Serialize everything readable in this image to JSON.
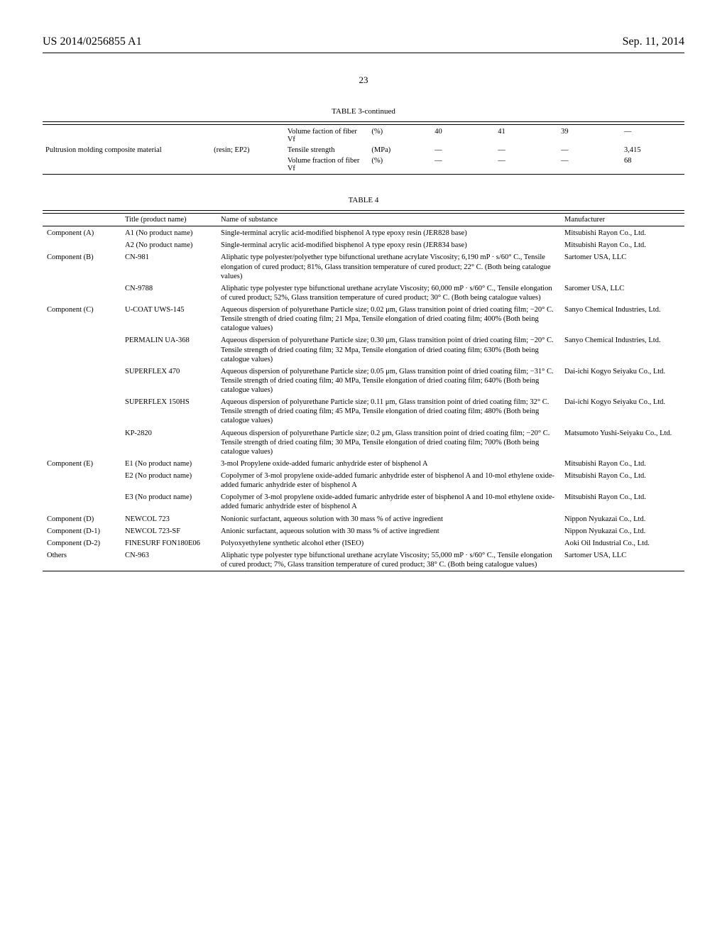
{
  "header": {
    "publication_number": "US 2014/0256855 A1",
    "page_number": "23",
    "publication_date": "Sep. 11, 2014"
  },
  "table3": {
    "title": "TABLE 3-continued",
    "rows": [
      {
        "label": "",
        "sub": "",
        "prop": "Volume faction of fiber Vf",
        "unit": "(%)",
        "v1": "40",
        "v2": "41",
        "v3": "39",
        "v4": "—"
      },
      {
        "label": "Pultrusion molding composite material",
        "sub": "(resin; EP2)",
        "prop": "Tensile strength",
        "unit": "(MPa)",
        "v1": "—",
        "v2": "—",
        "v3": "—",
        "v4": "3,415"
      },
      {
        "label": "",
        "sub": "",
        "prop": "Volume fraction of fiber Vf",
        "unit": "(%)",
        "v1": "—",
        "v2": "—",
        "v3": "—",
        "v4": "68"
      }
    ]
  },
  "table4": {
    "title": "TABLE 4",
    "headers": {
      "title": "Title (product name)",
      "name": "Name of substance",
      "manufacturer": "Manufacturer"
    },
    "rows": [
      {
        "component": "Component (A)",
        "title": "A1 (No product name)",
        "name": "Single-terminal acrylic acid-modified bisphenol A type epoxy resin (JER828 base)",
        "mfr": "Mitsubishi Rayon Co., Ltd."
      },
      {
        "component": "",
        "title": "A2 (No product name)",
        "name": "Single-terminal acrylic acid-modified bisphenol A type epoxy resin (JER834 base)",
        "mfr": "Mitsubishi Rayon Co., Ltd."
      },
      {
        "component": "Component (B)",
        "title": "CN-981",
        "name": "Aliphatic type polyester/polyether type bifunctional urethane acrylate Viscosity; 6,190 mP · s/60° C., Tensile elongation of cured product; 81%, Glass transition temperature of cured product; 22° C. (Both being catalogue values)",
        "mfr": "Sartomer USA, LLC"
      },
      {
        "component": "",
        "title": "CN-9788",
        "name": "Aliphatic type polyester type bifunctional urethane acrylate Viscosity; 60,000 mP · s/60° C., Tensile elongation of cured product; 52%, Glass transition temperature of cured product; 30° C. (Both being catalogue values)",
        "mfr": "Saromer USA, LLC"
      },
      {
        "component": "Component (C)",
        "title": "U-COAT UWS-145",
        "name": "Aqueous dispersion of polyurethane Particle size; 0.02 μm, Glass transition point of dried coating film; −20° C. Tensile strength of dried coating film; 21 Mpa, Tensile elongation of dried coating film; 400% (Both being catalogue values)",
        "mfr": "Sanyo Chemical Industries, Ltd."
      },
      {
        "component": "",
        "title": "PERMALIN UA-368",
        "name": "Aqueous dispersion of polyurethane Particle size; 0.30 μm, Glass transition point of dried coating film; −20° C. Tensile strength of dried coating film; 32 Mpa, Tensile elongation of dried coating film; 630% (Both being catalogue values)",
        "mfr": "Sanyo Chemical Industries, Ltd."
      },
      {
        "component": "",
        "title": "SUPERFLEX 470",
        "name": "Aqueous dispersion of polyurethane Particle size; 0.05 μm, Glass transition point of dried coating film; −31° C. Tensile strength of dried coating film; 40 MPa, Tensile elongation of dried coating film; 640% (Both being catalogue values)",
        "mfr": "Dai-ichi Kogyo Seiyaku Co., Ltd."
      },
      {
        "component": "",
        "title": "SUPERFLEX 150HS",
        "name": "Aqueous dispersion of polyurethane Particle size; 0.11 μm, Glass transition point of dried coating film; 32° C. Tensile strength of dried coating film; 45 MPa, Tensile elongation of dried coating film; 480% (Both being catalogue values)",
        "mfr": "Dai-ichi Kogyo Seiyaku Co., Ltd."
      },
      {
        "component": "",
        "title": "KP-2820",
        "name": "Aqueous dispersion of polyurethane Particle size; 0.2 μm, Glass transition point of dried coating film; −20° C. Tensile strength of dried coating film; 30 MPa, Tensile elongation of dried coating film; 700% (Both being catalogue values)",
        "mfr": "Matsumoto Yushi-Seiyaku Co., Ltd."
      },
      {
        "component": "Component (E)",
        "title": "E1 (No product name)",
        "name": "3-mol Propylene oxide-added fumaric anhydride ester of bisphenol A",
        "mfr": "Mitsubishi Rayon Co., Ltd."
      },
      {
        "component": "",
        "title": "E2 (No product name)",
        "name": "Copolymer of 3-mol propylene oxide-added fumaric anhydride ester of bisphenol A and 10-mol ethylene oxide-added fumaric anhydride ester of bisphenol A",
        "mfr": "Mitsubishi Rayon Co., Ltd."
      },
      {
        "component": "",
        "title": "E3 (No product name)",
        "name": "Copolymer of 3-mol propylene oxide-added fumaric anhydride ester of bisphenol A and 10-mol ethylene oxide-added fumaric anhydride ester of bisphenol A",
        "mfr": "Mitsubishi Rayon Co., Ltd."
      },
      {
        "component": "Component (D)",
        "title": "NEWCOL 723",
        "name": "Nonionic surfactant, aqueous solution with 30 mass % of active ingredient",
        "mfr": "Nippon Nyukazai Co., Ltd."
      },
      {
        "component": "Component (D-1)",
        "title": "NEWCOL 723-SF",
        "name": "Anionic surfactant, aqueous solution with 30 mass % of active ingredient",
        "mfr": "Nippon Nyukazai Co., Ltd.",
        "indent": true
      },
      {
        "component": "Component (D-2)",
        "title": "FINESURF FON180E06",
        "name": "Polyoxyethylene synthetic alcohol ether (ISEO)",
        "mfr": "Aoki Oil Industrial Co., Ltd.",
        "indent": true
      },
      {
        "component": "Others",
        "title": "CN-963",
        "name": "Aliphatic type polyester type bifunctional urethane acrylate Viscosity; 55,000 mP · s/60° C., Tensile elongation of cured product; 7%, Glass transition temperature of cured product; 38° C. (Both being catalogue values)",
        "mfr": "Sartomer USA, LLC"
      }
    ]
  }
}
